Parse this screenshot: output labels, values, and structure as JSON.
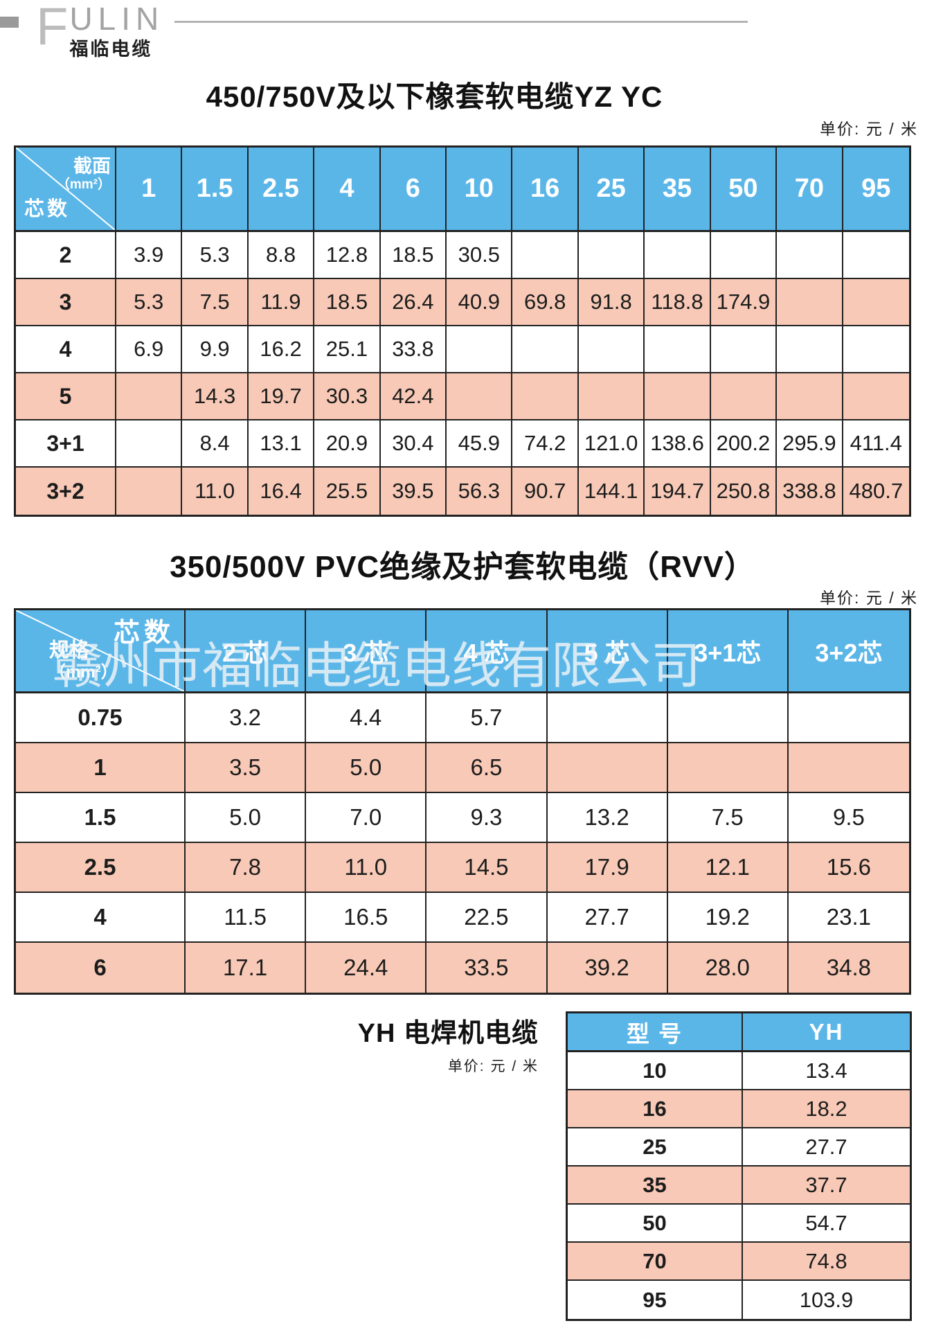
{
  "logo": {
    "brand_initial": "F",
    "brand_rest": "ULIN",
    "subtitle": "福临电缆"
  },
  "watermark": "赣州市福临电缆电线有限公司",
  "colors": {
    "header_blue": "#5bb6e8",
    "row_pink": "#f7c9b6",
    "border": "#222222"
  },
  "table1": {
    "title": "450/750V及以下橡套软电缆YZ YC",
    "unit": "单价:  元 / 米",
    "corner_top": "截面",
    "corner_top_sub": "（mm²）",
    "corner_bottom": "芯数",
    "columns": [
      "1",
      "1.5",
      "2.5",
      "4",
      "6",
      "10",
      "16",
      "25",
      "35",
      "50",
      "70",
      "95"
    ],
    "rows": [
      {
        "label": "2",
        "values": [
          "3.9",
          "5.3",
          "8.8",
          "12.8",
          "18.5",
          "30.5",
          "",
          "",
          "",
          "",
          "",
          ""
        ]
      },
      {
        "label": "3",
        "values": [
          "5.3",
          "7.5",
          "11.9",
          "18.5",
          "26.4",
          "40.9",
          "69.8",
          "91.8",
          "118.8",
          "174.9",
          "",
          ""
        ]
      },
      {
        "label": "4",
        "values": [
          "6.9",
          "9.9",
          "16.2",
          "25.1",
          "33.8",
          "",
          "",
          "",
          "",
          "",
          "",
          ""
        ]
      },
      {
        "label": "5",
        "values": [
          "",
          "14.3",
          "19.7",
          "30.3",
          "42.4",
          "",
          "",
          "",
          "",
          "",
          "",
          ""
        ]
      },
      {
        "label": "3+1",
        "values": [
          "",
          "8.4",
          "13.1",
          "20.9",
          "30.4",
          "45.9",
          "74.2",
          "121.0",
          "138.6",
          "200.2",
          "295.9",
          "411.4"
        ]
      },
      {
        "label": "3+2",
        "values": [
          "",
          "11.0",
          "16.4",
          "25.5",
          "39.5",
          "56.3",
          "90.7",
          "144.1",
          "194.7",
          "250.8",
          "338.8",
          "480.7"
        ]
      }
    ]
  },
  "table2": {
    "title": "350/500V PVC绝缘及护套软电缆（RVV）",
    "unit": "单价:  元 / 米",
    "corner_top": "芯数",
    "corner_bottom": "规格",
    "corner_bottom_sub": "（mm²）",
    "columns": [
      "2 芯",
      "3 芯",
      "4 芯",
      "5 芯",
      "3+1芯",
      "3+2芯"
    ],
    "rows": [
      {
        "label": "0.75",
        "values": [
          "3.2",
          "4.4",
          "5.7",
          "",
          "",
          ""
        ]
      },
      {
        "label": "1",
        "values": [
          "3.5",
          "5.0",
          "6.5",
          "",
          "",
          ""
        ]
      },
      {
        "label": "1.5",
        "values": [
          "5.0",
          "7.0",
          "9.3",
          "13.2",
          "7.5",
          "9.5"
        ]
      },
      {
        "label": "2.5",
        "values": [
          "7.8",
          "11.0",
          "14.5",
          "17.9",
          "12.1",
          "15.6"
        ]
      },
      {
        "label": "4",
        "values": [
          "11.5",
          "16.5",
          "22.5",
          "27.7",
          "19.2",
          "23.1"
        ]
      },
      {
        "label": "6",
        "values": [
          "17.1",
          "24.4",
          "33.5",
          "39.2",
          "28.0",
          "34.8"
        ]
      }
    ]
  },
  "table3": {
    "title": "YH 电焊机电缆",
    "unit": "单价:  元 / 米",
    "columns": [
      "型 号",
      "YH"
    ],
    "rows": [
      {
        "label": "10",
        "values": [
          "13.4"
        ]
      },
      {
        "label": "16",
        "values": [
          "18.2"
        ]
      },
      {
        "label": "25",
        "values": [
          "27.7"
        ]
      },
      {
        "label": "35",
        "values": [
          "37.7"
        ]
      },
      {
        "label": "50",
        "values": [
          "54.7"
        ]
      },
      {
        "label": "70",
        "values": [
          "74.8"
        ]
      },
      {
        "label": "95",
        "values": [
          "103.9"
        ]
      }
    ]
  }
}
